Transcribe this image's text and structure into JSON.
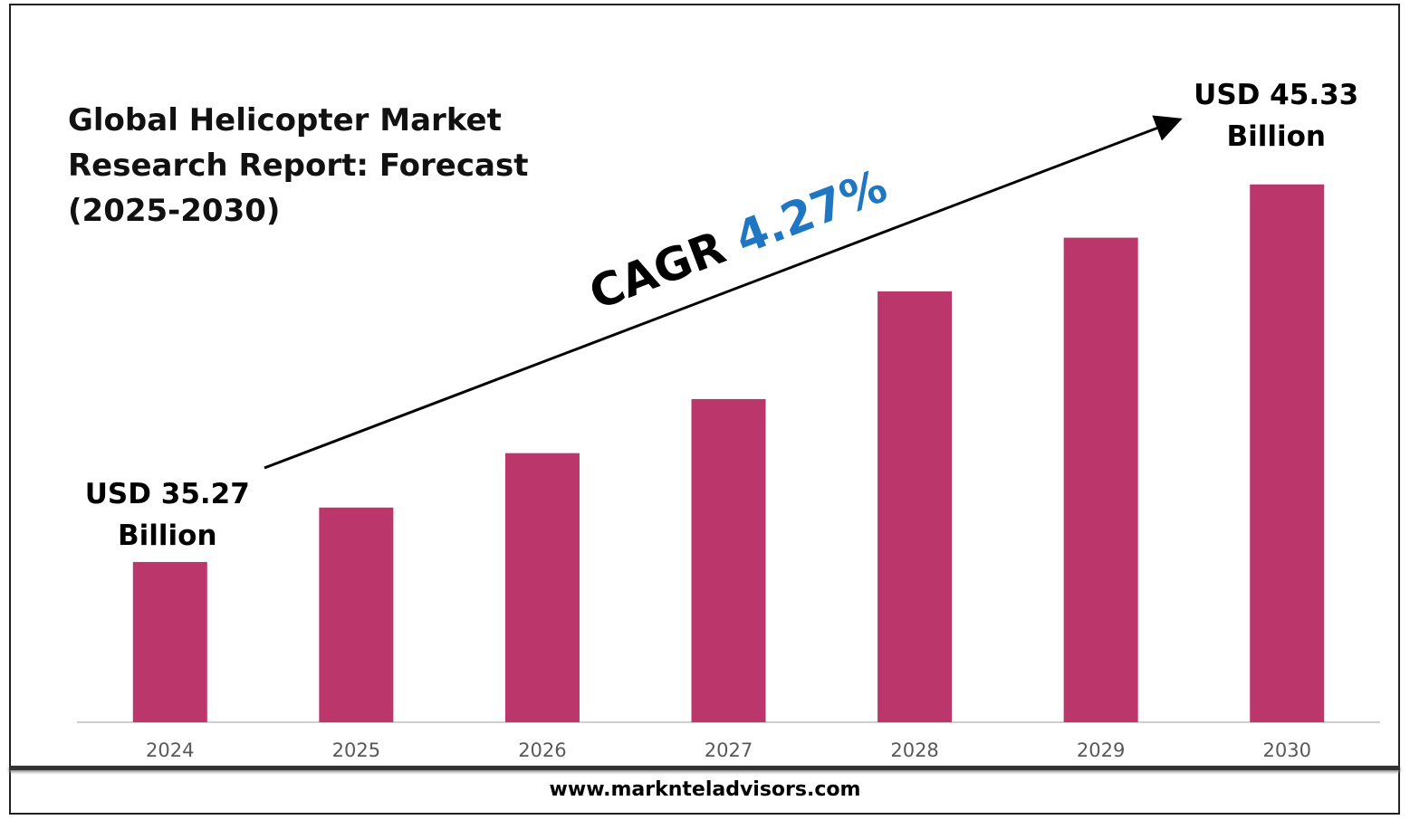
{
  "chart_data": {
    "type": "bar",
    "title": "Global Helicopter Market Research Report: Forecast (2025-2030)",
    "categories": [
      "2024",
      "2025",
      "2026",
      "2027",
      "2028",
      "2029",
      "2030"
    ],
    "values": [
      35.27,
      36.72,
      38.17,
      39.61,
      42.48,
      43.91,
      45.33
    ],
    "value_labels": [
      "USD 35.27 Billion",
      null,
      null,
      null,
      null,
      null,
      "USD 45.33 Billion"
    ],
    "color": "#bb366b",
    "ylim": [
      31,
      48
    ],
    "annotations": [
      "CAGR",
      "4.27%"
    ],
    "annotation_colors": [
      "#000000",
      "#1f77c4"
    ],
    "source": "www.marknteladvisors.com"
  }
}
